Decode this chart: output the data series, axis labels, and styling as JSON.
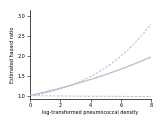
{
  "title": "",
  "xlabel": "log-transformed pneumococcal density",
  "ylabel": "Estimated hazard ratio",
  "xlim": [
    0,
    8
  ],
  "ylim": [
    0.92,
    3.15
  ],
  "yticks": [
    1.0,
    1.5,
    2.0,
    2.5,
    3.0
  ],
  "xticks": [
    0,
    2,
    4,
    6,
    8
  ],
  "line_color": "#b0bece",
  "bg_color": "#ffffff",
  "x_start": 0,
  "x_end": 8,
  "n_points": 300,
  "solid_slope": 0.085,
  "upper_ci_a": 0.022,
  "upper_ci_b": 0.038,
  "lower_ci_a": -0.012,
  "lower_ci_b": 0.006
}
